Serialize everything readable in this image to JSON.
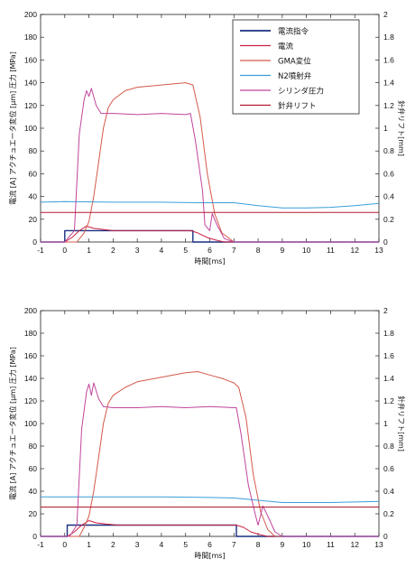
{
  "chart_data": [
    {
      "type": "line",
      "xlabel": "時間[ms]",
      "ylabel": "電流 [A] アクチュエータ変位 [μm] 圧力 [MPa]",
      "y2label": "針弁リフト[mm]",
      "xlim": [
        -1,
        13
      ],
      "ylim": [
        0,
        200
      ],
      "y2lim": [
        0,
        2
      ],
      "xticks": [
        "-1",
        "0",
        "1",
        "2",
        "3",
        "4",
        "5",
        "6",
        "7",
        "8",
        "9",
        "10",
        "11",
        "12",
        "13"
      ],
      "yticks": [
        "0",
        "20",
        "40",
        "60",
        "80",
        "100",
        "120",
        "140",
        "160",
        "180",
        "200"
      ],
      "y2ticks": [
        "0",
        "0.2",
        "0.4",
        "0.6",
        "0.8",
        "1",
        "1.2",
        "1.4",
        "1.6",
        "1.8",
        "2"
      ],
      "grid": false,
      "legend_position": "top-right",
      "series": [
        {
          "name": "電流指令",
          "color": "#1a2f80",
          "width": 1.4,
          "x": [
            -1,
            0,
            0,
            5.3,
            5.3,
            13
          ],
          "y": [
            0,
            0,
            10,
            10,
            0,
            0
          ]
        },
        {
          "name": "電流",
          "color": "#cc2244",
          "width": 1.0,
          "x": [
            -1,
            0,
            0.3,
            0.6,
            0.9,
            1.2,
            1.6,
            2,
            3,
            4,
            5,
            5.2,
            5.5,
            5.9,
            6.2,
            6.6,
            13
          ],
          "y": [
            0,
            0,
            4,
            10,
            14,
            12,
            11,
            10,
            10,
            10,
            10,
            10,
            8,
            4,
            2,
            0,
            0
          ]
        },
        {
          "name": "GMA変位",
          "color": "#d45a4a",
          "width": 1.0,
          "x": [
            -1,
            0.5,
            0.8,
            1,
            1.2,
            1.4,
            1.6,
            1.8,
            2,
            2.5,
            3,
            3.5,
            4,
            4.5,
            5,
            5.3,
            5.6,
            5.9,
            6.2,
            6.5,
            7,
            13
          ],
          "y": [
            0,
            0,
            8,
            18,
            40,
            70,
            100,
            118,
            125,
            133,
            136,
            137,
            138,
            139,
            140,
            138,
            110,
            60,
            25,
            8,
            0,
            0
          ]
        },
        {
          "name": "N2噴射弁",
          "color": "#3a9ed8",
          "width": 1.0,
          "x": [
            -1,
            0,
            2,
            4,
            5.5,
            7,
            8,
            9,
            10,
            11,
            12,
            13
          ],
          "y": [
            35,
            35.5,
            35,
            35,
            34.5,
            34.5,
            32,
            30,
            30,
            30.5,
            32,
            34
          ]
        },
        {
          "name": "シリンダ圧力",
          "color": "#c0459c",
          "width": 1.0,
          "x": [
            -1,
            0,
            0.4,
            0.6,
            0.8,
            0.9,
            1,
            1.1,
            1.3,
            1.5,
            2,
            3,
            4,
            5,
            5.2,
            5.4,
            5.7,
            5.8,
            6,
            6.1,
            6.3,
            6.6,
            7,
            13
          ],
          "y": [
            0,
            0,
            10,
            95,
            125,
            133,
            128,
            135,
            120,
            113,
            113,
            112,
            113,
            112,
            113,
            90,
            45,
            15,
            10,
            25,
            15,
            3,
            0,
            0
          ]
        },
        {
          "name": "針弁リフト",
          "color": "#b21a30",
          "width": 1.0,
          "x": [
            -1,
            13
          ],
          "y": [
            26,
            26
          ]
        }
      ]
    },
    {
      "type": "line",
      "xlabel": "時間[ms]",
      "ylabel": "電流 [A] アクチュエータ変位 [μm] 圧力 [MPa]",
      "y2label": "針弁リフト[mm]",
      "xlim": [
        -1,
        13
      ],
      "ylim": [
        0,
        200
      ],
      "y2lim": [
        0,
        2
      ],
      "xticks": [
        "-1",
        "0",
        "1",
        "2",
        "3",
        "4",
        "5",
        "6",
        "7",
        "8",
        "9",
        "10",
        "11",
        "12",
        "13"
      ],
      "yticks": [
        "0",
        "20",
        "40",
        "60",
        "80",
        "100",
        "120",
        "140",
        "160",
        "180",
        "200"
      ],
      "y2ticks": [
        "0",
        "0.2",
        "0.4",
        "0.6",
        "0.8",
        "1",
        "1.2",
        "1.4",
        "1.6",
        "1.8",
        "2"
      ],
      "grid": false,
      "series": [
        {
          "name": "電流指令",
          "color": "#1a2f80",
          "width": 1.4,
          "x": [
            -1,
            0.1,
            0.1,
            7.1,
            7.1,
            13
          ],
          "y": [
            0,
            0,
            10,
            10,
            0,
            0
          ]
        },
        {
          "name": "電流",
          "color": "#cc2244",
          "width": 1.0,
          "x": [
            -1,
            0.1,
            0.4,
            0.7,
            1,
            1.3,
            1.7,
            2.2,
            3,
            5,
            7,
            7.1,
            7.4,
            7.7,
            8,
            8.2,
            8.4,
            13
          ],
          "y": [
            0,
            0,
            4,
            10,
            14,
            12,
            11,
            10,
            10,
            10,
            10,
            10,
            8,
            4,
            2,
            1,
            0,
            0
          ]
        },
        {
          "name": "GMA変位",
          "color": "#d45a4a",
          "width": 1.0,
          "x": [
            -1,
            0.6,
            0.8,
            1,
            1.2,
            1.4,
            1.6,
            1.8,
            2,
            2.5,
            3,
            4,
            5,
            5.5,
            6,
            6.5,
            7,
            7.2,
            7.5,
            7.8,
            8.1,
            8.4,
            8.7,
            9,
            13
          ],
          "y": [
            0,
            0,
            8,
            18,
            40,
            70,
            100,
            118,
            125,
            132,
            137,
            141,
            145,
            146,
            143,
            140,
            136,
            132,
            105,
            55,
            22,
            6,
            0,
            0,
            0
          ]
        },
        {
          "name": "N2噴射弁",
          "color": "#3a9ed8",
          "width": 1.0,
          "x": [
            -1,
            0,
            2,
            4,
            6,
            7,
            7.5,
            8.5,
            9,
            10,
            11,
            12,
            13
          ],
          "y": [
            35,
            35,
            35,
            35,
            34.5,
            34,
            33,
            31,
            30,
            30,
            30,
            30.5,
            31
          ]
        },
        {
          "name": "シリンダ圧力",
          "color": "#c0459c",
          "width": 1.0,
          "x": [
            -1,
            0.2,
            0.5,
            0.7,
            0.9,
            1,
            1.1,
            1.2,
            1.4,
            1.6,
            2,
            3,
            4,
            5,
            6,
            7,
            7.1,
            7.3,
            7.6,
            7.9,
            8,
            8.2,
            8.4,
            8.7,
            9,
            13
          ],
          "y": [
            0,
            0,
            10,
            95,
            128,
            135,
            125,
            136,
            122,
            115,
            114,
            114,
            115,
            114,
            115,
            114,
            114,
            90,
            45,
            18,
            10,
            27,
            18,
            4,
            0,
            0
          ]
        },
        {
          "name": "針弁リフト",
          "color": "#b21a30",
          "width": 1.0,
          "x": [
            -1,
            13
          ],
          "y": [
            26,
            26
          ]
        }
      ]
    }
  ]
}
